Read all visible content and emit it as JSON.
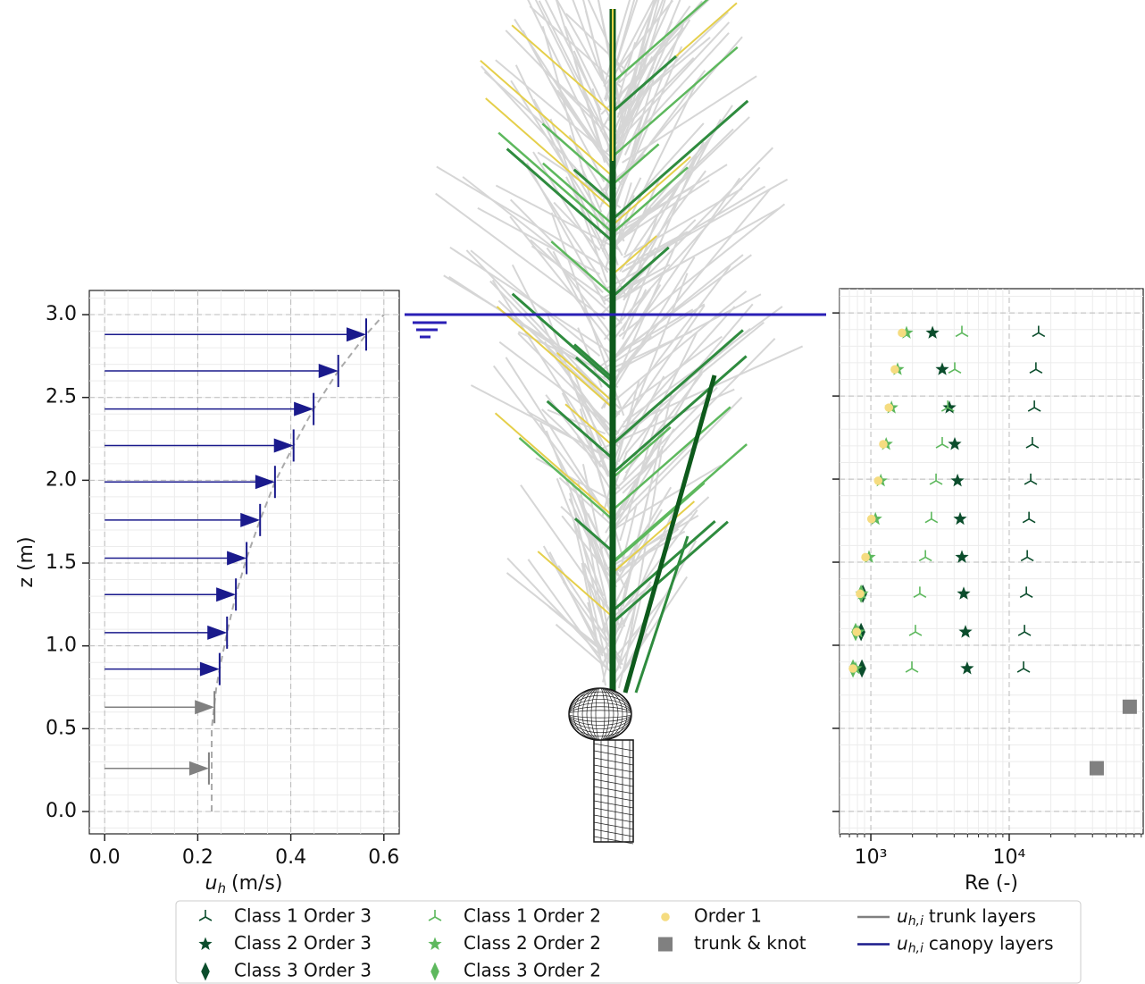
{
  "chart_data": [
    {
      "type": "quiver",
      "ylabel": "z (m)",
      "xlabel_symbol": "u",
      "xlabel_subscript": "h",
      "xlabel": "(m/s)",
      "xlim": [
        -0.033,
        0.633
      ],
      "ylim": [
        -0.135,
        3.146
      ],
      "xticks": [
        {
          "value": 0,
          "label": "0.0"
        },
        0.2,
        0.4,
        0.6
      ],
      "yticks": [
        {
          "value": 0,
          "label": "0.0"
        },
        0.5,
        {
          "value": 1,
          "label": "1.0"
        },
        1.5,
        {
          "value": 2,
          "label": "2.0"
        },
        2.5,
        {
          "value": 3,
          "label": "3.0"
        }
      ],
      "grid": true,
      "minor_grid": true,
      "water_level": 3.0,
      "series": [
        {
          "name_symbol": "u",
          "name_subscript": "h,i",
          "name": "trunk layers",
          "color": "#808080",
          "x": [
            0.236,
            0.224
          ],
          "y": [
            0.63,
            0.26
          ]
        },
        {
          "name_symbol": "u",
          "name_subscript": "h,i",
          "name": "canopy layers",
          "color": "#1a1a8c",
          "x": [
            0.562,
            0.502,
            0.449,
            0.406,
            0.366,
            0.334,
            0.305,
            0.282,
            0.263,
            0.247
          ],
          "y": [
            2.88,
            2.66,
            2.43,
            2.21,
            1.99,
            1.76,
            1.53,
            1.31,
            1.08,
            0.86
          ]
        }
      ],
      "profile": {
        "color": "#aaaaaa",
        "x": [
          0.23,
          0.23,
          0.24,
          0.247,
          0.263,
          0.282,
          0.305,
          0.334,
          0.366,
          0.406,
          0.449,
          0.502,
          0.562,
          0.6
        ],
        "y": [
          0,
          0.5,
          0.75,
          0.86,
          1.08,
          1.31,
          1.53,
          1.76,
          1.99,
          2.21,
          2.43,
          2.66,
          2.88,
          3.0
        ]
      }
    },
    {
      "type": "scatter",
      "xlabel": "Re (-)",
      "xscale": "log",
      "xlim": [
        594,
        93000
      ],
      "ylim": [
        -0.135,
        3.146
      ],
      "xticks": [
        {
          "value": 1000,
          "label": "10³"
        },
        {
          "value": 10000,
          "label": "10⁴"
        }
      ],
      "yticks": [
        0,
        0.5,
        1,
        1.5,
        2,
        2.5,
        3
      ],
      "grid": true,
      "minor_grid": true,
      "series": [
        {
          "name": "Class 1 Order 3",
          "color": "#0b4d2c",
          "marker": "tri",
          "x": [
            16300,
            15600,
            15200,
            14700,
            14300,
            13900,
            13500,
            13300,
            12900,
            12700
          ],
          "y": [
            2.88,
            2.66,
            2.43,
            2.21,
            1.99,
            1.76,
            1.53,
            1.31,
            1.08,
            0.86
          ]
        },
        {
          "name": "Class 2 Order 3",
          "color": "#0b4d2c",
          "marker": "star",
          "x": [
            2790,
            3280,
            3700,
            4040,
            4230,
            4420,
            4550,
            4690,
            4830,
            4970
          ],
          "y": [
            2.88,
            2.66,
            2.43,
            2.21,
            1.99,
            1.76,
            1.53,
            1.31,
            1.08,
            0.86
          ]
        },
        {
          "name": "Class 3 Order 3",
          "color": "#0b4d2c",
          "marker": "diamond",
          "x": [
            875,
            850,
            862
          ],
          "y": [
            1.31,
            1.08,
            0.86
          ]
        },
        {
          "name": "Class 1 Order 2",
          "color": "#5db85d",
          "marker": "tri",
          "x": [
            4550,
            4040,
            3600,
            3280,
            2960,
            2740,
            2480,
            2260,
            2100,
            1980
          ],
          "y": [
            2.88,
            2.66,
            2.43,
            2.21,
            1.99,
            1.76,
            1.53,
            1.31,
            1.08,
            0.86
          ]
        },
        {
          "name": "Class 2 Order 2",
          "color": "#5db85d",
          "marker": "star",
          "x": [
            1810,
            1560,
            1410,
            1290,
            1180,
            1080,
            970,
            862,
            812,
            776
          ],
          "y": [
            2.88,
            2.66,
            2.43,
            2.21,
            1.99,
            1.76,
            1.53,
            1.31,
            1.08,
            0.86
          ]
        },
        {
          "name": "Class 3 Order 2",
          "color": "#5db85d",
          "marker": "diamond",
          "x": [
            850,
            776,
            743
          ],
          "y": [
            1.31,
            1.08,
            0.86
          ]
        },
        {
          "name": "Order 1",
          "color": "#f5dc80",
          "marker": "circle",
          "x": [
            1680,
            1490,
            1350,
            1230,
            1130,
            1010,
            915,
            836,
            790,
            743
          ],
          "y": [
            2.88,
            2.66,
            2.43,
            2.21,
            1.99,
            1.76,
            1.53,
            1.31,
            1.08,
            0.86
          ]
        },
        {
          "name": "trunk & knot",
          "color": "#808080",
          "marker": "square",
          "x": [
            74300,
            42900
          ],
          "y": [
            0.63,
            0.26
          ]
        }
      ]
    }
  ]
}
